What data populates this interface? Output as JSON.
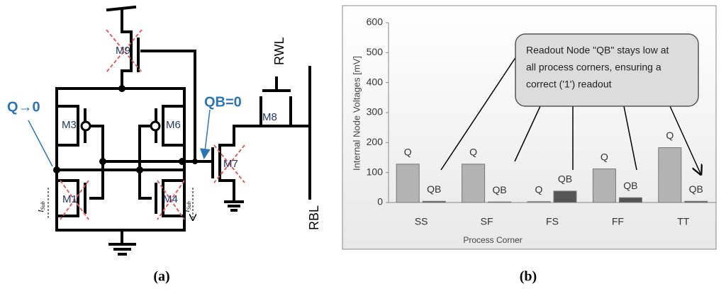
{
  "diagram": {
    "q_label": "Q→0",
    "qb_label": "QB=0",
    "transistors": [
      "M9",
      "M3",
      "M6",
      "M1",
      "M4",
      "M7",
      "M8"
    ],
    "rwl": "RWL",
    "rbl": "RBL",
    "current": {
      "symbol": "I",
      "subscript": "Sub"
    },
    "panel": "(a)"
  },
  "chart_data": {
    "type": "bar",
    "panel": "(b)",
    "ylabel": "Internal Node Voltages [mV]",
    "xlabel": "Process Corner",
    "annotation": [
      "Readout Node \"QB\" stays low at",
      "all process corners, ensuring  a",
      "correct ('1') readout"
    ],
    "categories": [
      "SS",
      "SF",
      "FS",
      "FF",
      "TT"
    ],
    "series": [
      {
        "name": "Q",
        "color": "#b3b3b3",
        "values": [
          128,
          128,
          3,
          112,
          183
        ]
      },
      {
        "name": "QB",
        "color": "#555555",
        "values": [
          4,
          2,
          38,
          16,
          4
        ]
      }
    ],
    "ylim": [
      0,
      600
    ],
    "yticks": [
      0,
      100,
      200,
      300,
      400,
      500,
      600
    ],
    "grid": false
  }
}
